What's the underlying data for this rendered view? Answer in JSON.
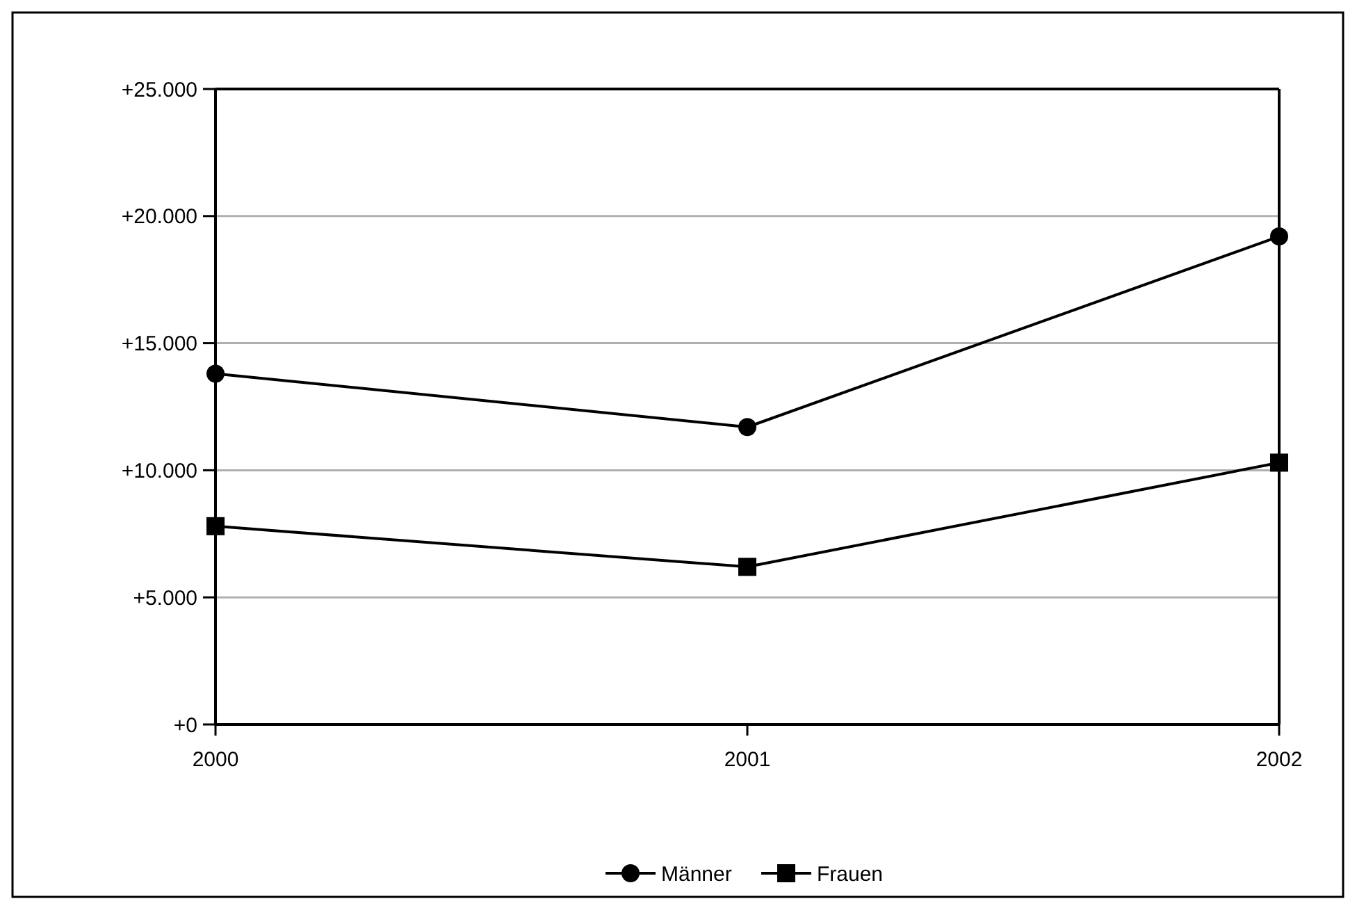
{
  "chart_data": {
    "type": "line",
    "categories": [
      "2000",
      "2001",
      "2002"
    ],
    "series": [
      {
        "name": "Männer",
        "color": "#000000",
        "marker": "circle",
        "values": [
          13800,
          11700,
          19200
        ]
      },
      {
        "name": "Frauen",
        "color": "#000000",
        "marker": "square",
        "values": [
          7800,
          6200,
          10300
        ]
      }
    ],
    "ylim": [
      0,
      25000
    ],
    "yticks": [
      {
        "value": 0,
        "label": "+0"
      },
      {
        "value": 5000,
        "label": "+5.000"
      },
      {
        "value": 10000,
        "label": "+10.000"
      },
      {
        "value": 15000,
        "label": "+15.000"
      },
      {
        "value": 20000,
        "label": "+20.000"
      },
      {
        "value": 25000,
        "label": "+25.000"
      }
    ],
    "grid": "y",
    "legend": "bottom",
    "line_style": "solid"
  }
}
